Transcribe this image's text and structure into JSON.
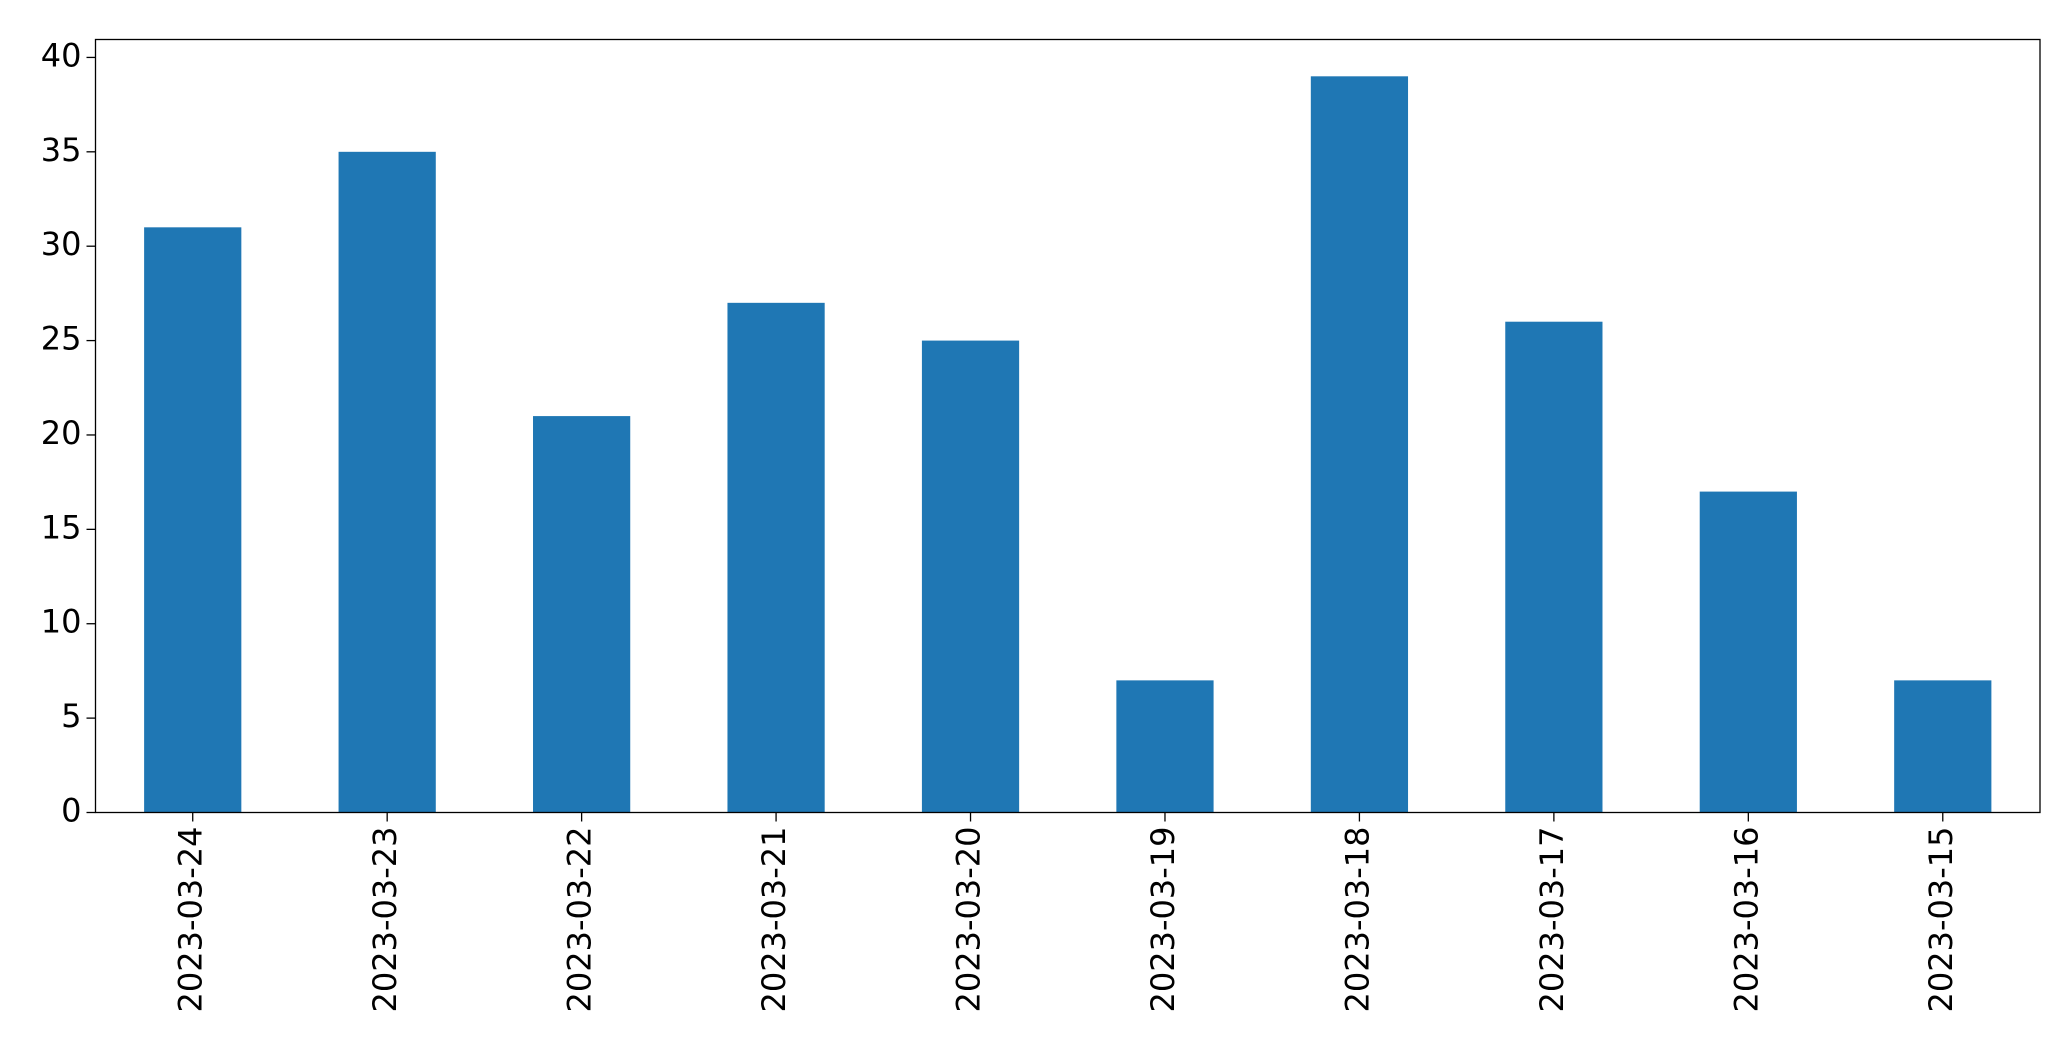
{
  "chart_data": {
    "type": "bar",
    "categories": [
      "2023-03-24",
      "2023-03-23",
      "2023-03-22",
      "2023-03-21",
      "2023-03-20",
      "2023-03-19",
      "2023-03-18",
      "2023-03-17",
      "2023-03-16",
      "2023-03-15"
    ],
    "values": [
      31,
      35,
      21,
      27,
      25,
      7,
      39,
      26,
      17,
      7
    ],
    "color": "#1f77b4",
    "ylim": [
      0,
      40.95
    ],
    "yticks": [
      0,
      5,
      10,
      15,
      20,
      25,
      30,
      35,
      40
    ],
    "grid": false
  }
}
